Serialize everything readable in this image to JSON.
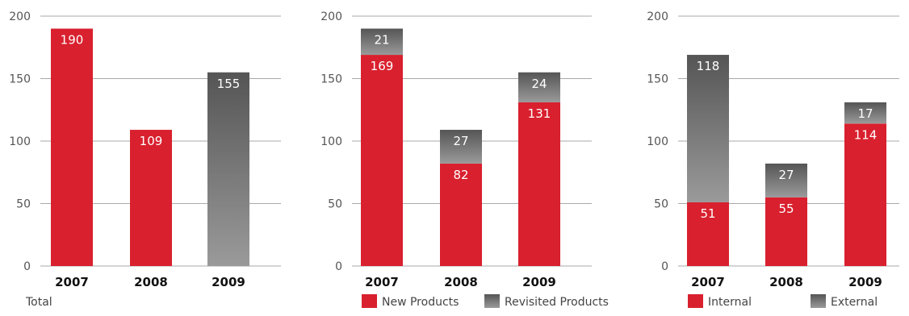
{
  "colors": {
    "red": "#d9202e",
    "gray_top": "#555555",
    "gray_bottom": "#9a9a9a",
    "grid": "#aaaaaa"
  },
  "chart_data": [
    {
      "type": "bar",
      "categories": [
        "2007",
        "2008",
        "2009"
      ],
      "series": [
        {
          "name": "Total",
          "values": [
            190,
            109,
            155
          ],
          "bar_styles": [
            "red",
            "red",
            "gray"
          ]
        }
      ],
      "ylim": [
        0,
        200
      ],
      "yticks": [
        0,
        50,
        100,
        150,
        200
      ],
      "grid": true,
      "caption": "Total"
    },
    {
      "type": "bar",
      "stacked": true,
      "categories": [
        "2007",
        "2008",
        "2009"
      ],
      "series": [
        {
          "name": "New Products",
          "values": [
            169,
            82,
            131
          ],
          "style": "red"
        },
        {
          "name": "Revisited Products",
          "values": [
            21,
            27,
            24
          ],
          "style": "gray"
        }
      ],
      "ylim": [
        0,
        200
      ],
      "yticks": [
        0,
        50,
        100,
        150,
        200
      ],
      "grid": true,
      "legend": "bottom"
    },
    {
      "type": "bar",
      "stacked": true,
      "categories": [
        "2007",
        "2008",
        "2009"
      ],
      "series": [
        {
          "name": "Internal",
          "values": [
            51,
            55,
            114
          ],
          "style": "red"
        },
        {
          "name": "External",
          "values": [
            118,
            27,
            17
          ],
          "style": "gray"
        }
      ],
      "ylim": [
        0,
        200
      ],
      "yticks": [
        0,
        50,
        100,
        150,
        200
      ],
      "grid": true,
      "legend": "bottom"
    }
  ]
}
